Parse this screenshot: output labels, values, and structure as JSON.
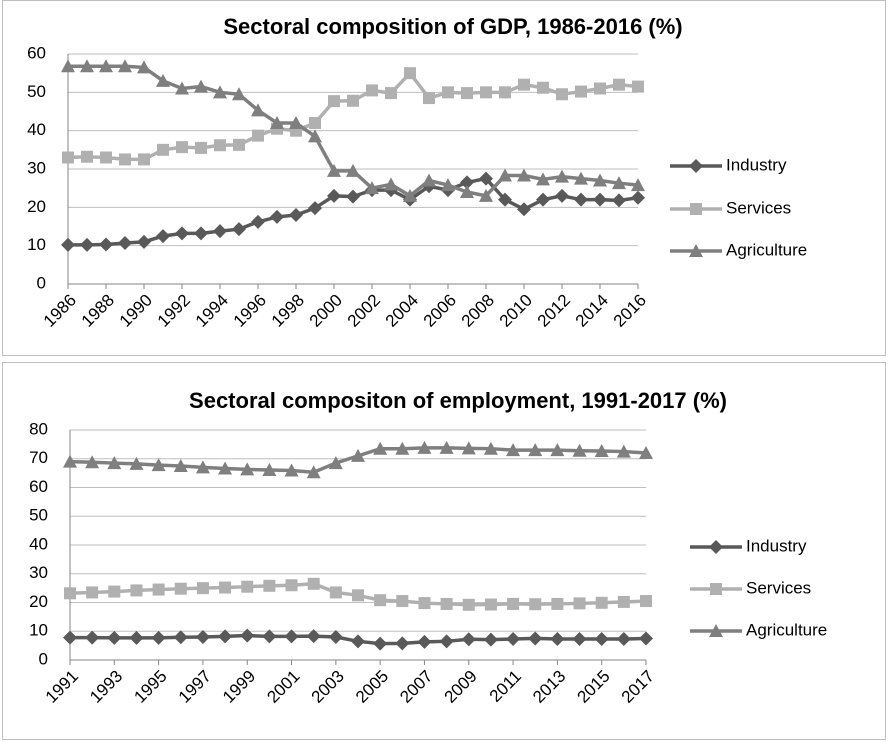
{
  "chart_data": [
    {
      "type": "line",
      "title": "Sectoral composition of GDP, 1986-2016 (%)",
      "x": [
        1986,
        1987,
        1988,
        1989,
        1990,
        1991,
        1992,
        1993,
        1994,
        1995,
        1996,
        1997,
        1998,
        1999,
        2000,
        2001,
        2002,
        2003,
        2004,
        2005,
        2006,
        2007,
        2008,
        2009,
        2010,
        2011,
        2012,
        2013,
        2014,
        2015,
        2016
      ],
      "xlim": [
        1986,
        2016
      ],
      "xticks": [
        1986,
        1988,
        1990,
        1992,
        1994,
        1996,
        1998,
        2000,
        2002,
        2004,
        2006,
        2008,
        2010,
        2012,
        2014,
        2016
      ],
      "ylim": [
        0,
        60
      ],
      "yticks": [
        0,
        10,
        20,
        30,
        40,
        50,
        60
      ],
      "grid": true,
      "legend": "right",
      "series": [
        {
          "name": "Industry",
          "color": "#595959",
          "marker": "diamond",
          "values": [
            10.2,
            10.2,
            10.3,
            10.7,
            11,
            12.5,
            13.2,
            13.2,
            13.8,
            14.3,
            16.2,
            17.5,
            18,
            19.8,
            23,
            22.8,
            24.5,
            24.5,
            22,
            25.5,
            24.5,
            26.5,
            27.5,
            22,
            19.5,
            22,
            23,
            22,
            22,
            21.8,
            22.5
          ]
        },
        {
          "name": "Services",
          "color": "#b0b0b0",
          "marker": "square",
          "values": [
            33,
            33.2,
            33,
            32.5,
            32.5,
            35,
            35.7,
            35.5,
            36.2,
            36.3,
            38.7,
            40.5,
            40,
            42,
            47.7,
            47.8,
            50.5,
            49.8,
            55,
            48.5,
            50,
            49.8,
            50,
            50,
            52,
            51.2,
            49.5,
            50.2,
            51,
            52,
            51.5
          ]
        },
        {
          "name": "Agriculture",
          "color": "#7f7f7f",
          "marker": "triangle",
          "values": [
            56.8,
            56.8,
            56.8,
            56.8,
            56.5,
            53,
            51,
            51.5,
            50,
            49.5,
            45.3,
            42,
            42,
            38.5,
            29.5,
            29.5,
            25,
            26,
            23,
            27,
            25.8,
            24,
            23,
            28.3,
            28.3,
            27.3,
            28,
            27.5,
            27,
            26.3,
            25.8
          ]
        }
      ]
    },
    {
      "type": "line",
      "title": "Sectoral compositon of employment, 1991-2017 (%)",
      "x": [
        1991,
        1992,
        1993,
        1994,
        1995,
        1996,
        1997,
        1998,
        1999,
        2000,
        2001,
        2002,
        2003,
        2004,
        2005,
        2006,
        2007,
        2008,
        2009,
        2010,
        2011,
        2012,
        2013,
        2014,
        2015,
        2016,
        2017
      ],
      "xlim": [
        1991,
        2017
      ],
      "xticks": [
        1991,
        1993,
        1995,
        1997,
        1999,
        2001,
        2003,
        2005,
        2007,
        2009,
        2011,
        2013,
        2015,
        2017
      ],
      "ylim": [
        0,
        80
      ],
      "yticks": [
        0,
        10,
        20,
        30,
        40,
        50,
        60,
        70,
        80
      ],
      "grid": true,
      "legend": "right",
      "series": [
        {
          "name": "Industry",
          "color": "#595959",
          "marker": "diamond",
          "values": [
            7.8,
            7.8,
            7.7,
            7.7,
            7.7,
            7.9,
            8,
            8.2,
            8.5,
            8.2,
            8.2,
            8.3,
            8,
            6.5,
            5.7,
            5.8,
            6.3,
            6.5,
            7.2,
            7.1,
            7.3,
            7.5,
            7.3,
            7.3,
            7.3,
            7.3,
            7.5
          ]
        },
        {
          "name": "Services",
          "color": "#b0b0b0",
          "marker": "square",
          "values": [
            23.2,
            23.5,
            23.8,
            24.2,
            24.5,
            24.8,
            25,
            25.2,
            25.5,
            25.8,
            26,
            26.5,
            23.5,
            22.5,
            20.8,
            20.5,
            19.8,
            19.5,
            19.2,
            19.3,
            19.5,
            19.4,
            19.5,
            19.7,
            19.9,
            20.2,
            20.5
          ]
        },
        {
          "name": "Agriculture",
          "color": "#7f7f7f",
          "marker": "triangle",
          "values": [
            69,
            68.8,
            68.5,
            68.2,
            67.8,
            67.5,
            67,
            66.6,
            66.3,
            66.1,
            65.9,
            65.3,
            68.5,
            71,
            73.5,
            73.5,
            73.8,
            73.8,
            73.6,
            73.5,
            73,
            73,
            73,
            72.8,
            72.7,
            72.5,
            72
          ]
        }
      ]
    }
  ]
}
